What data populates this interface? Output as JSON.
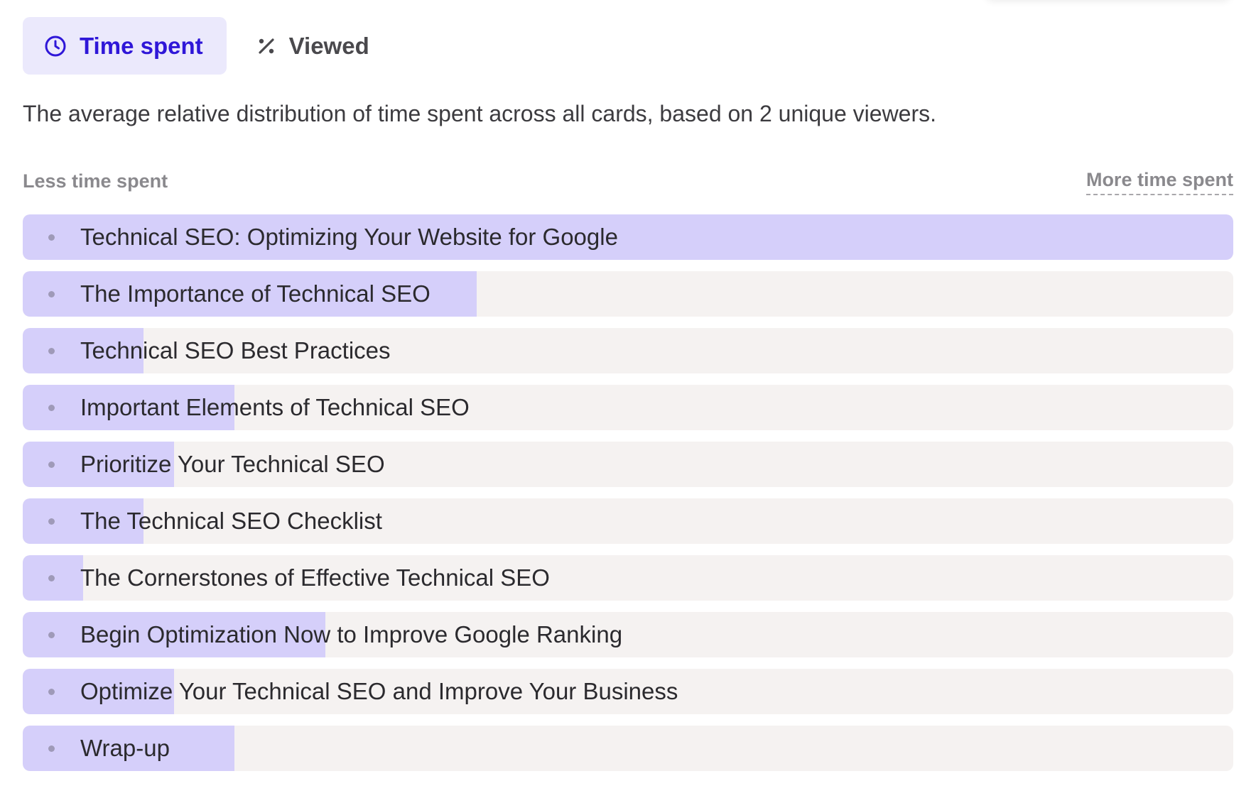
{
  "tabs": {
    "time_spent": {
      "label": "Time spent",
      "icon": "clock-icon",
      "active": true
    },
    "viewed": {
      "label": "Viewed",
      "icon": "percent-icon",
      "active": false
    }
  },
  "description": "The average relative distribution of time spent across all cards, based on 2 unique viewers.",
  "scale": {
    "less_label": "Less time spent",
    "more_label": "More time spent"
  },
  "colors": {
    "accent": "#2f17d8",
    "tab_active_bg": "#ebe9fc",
    "bar_fill": "#d5cffa",
    "bar_track": "#f5f2f1"
  },
  "cards": [
    {
      "title": "Technical SEO: Optimizing Your Website for Google",
      "relative_time": 1.0
    },
    {
      "title": "The Importance of Technical SEO",
      "relative_time": 0.375
    },
    {
      "title": "Technical SEO Best Practices",
      "relative_time": 0.1
    },
    {
      "title": "Important Elements of Technical SEO",
      "relative_time": 0.175
    },
    {
      "title": "Prioritize Your Technical SEO",
      "relative_time": 0.125
    },
    {
      "title": "The Technical SEO Checklist",
      "relative_time": 0.1
    },
    {
      "title": "The Cornerstones of Effective Technical SEO",
      "relative_time": 0.05
    },
    {
      "title": "Begin Optimization Now to Improve Google Ranking",
      "relative_time": 0.25
    },
    {
      "title": "Optimize Your Technical SEO and Improve Your Business",
      "relative_time": 0.125
    },
    {
      "title": "Wrap-up",
      "relative_time": 0.175
    }
  ]
}
